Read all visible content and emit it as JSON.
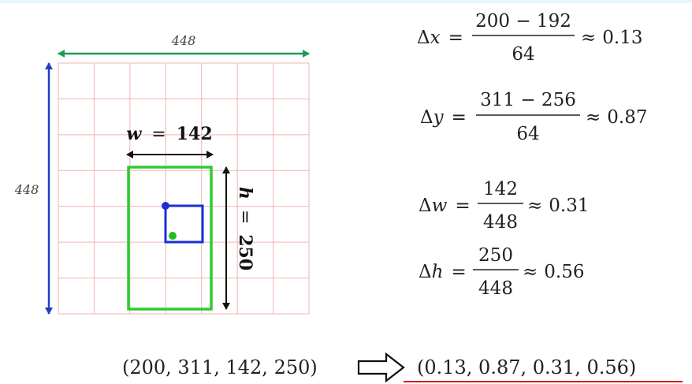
{
  "grid": {
    "rows": 7,
    "cols": 7,
    "line_color": "#f2b3b3"
  },
  "dimensions": {
    "width_label": "448",
    "height_label": "448",
    "w_var": "w",
    "w_value": "142",
    "h_var": "h",
    "h_value": "250",
    "equals": "="
  },
  "colors": {
    "width_arrow": "#1f9a55",
    "height_arrow": "#1f3fc0",
    "bbox": "#2ecc2e",
    "cell": "#1a2fd6",
    "center_point": "#1fc01f",
    "cell_corner": "#1a2fd6",
    "underline": "#d62020"
  },
  "formulas": [
    {
      "delta": "Δ",
      "var": "x",
      "equals": "=",
      "numerator": "200 − 192",
      "denominator": "64",
      "approx": "≈",
      "result": "0.13"
    },
    {
      "delta": "Δ",
      "var": "y",
      "equals": "=",
      "numerator": "311 − 256",
      "denominator": "64",
      "approx": "≈",
      "result": "0.87"
    },
    {
      "delta": "Δ",
      "var": "w",
      "equals": "=",
      "numerator": "142",
      "denominator": "448",
      "approx": "≈",
      "result": "0.31"
    },
    {
      "delta": "Δ",
      "var": "h",
      "equals": "=",
      "numerator": "250",
      "denominator": "448",
      "approx": "≈",
      "result": "0.56"
    }
  ],
  "conversion": {
    "input": "(200, 311, 142, 250)",
    "output": "(0.13,  0.87,  0.31,  0.56)"
  }
}
